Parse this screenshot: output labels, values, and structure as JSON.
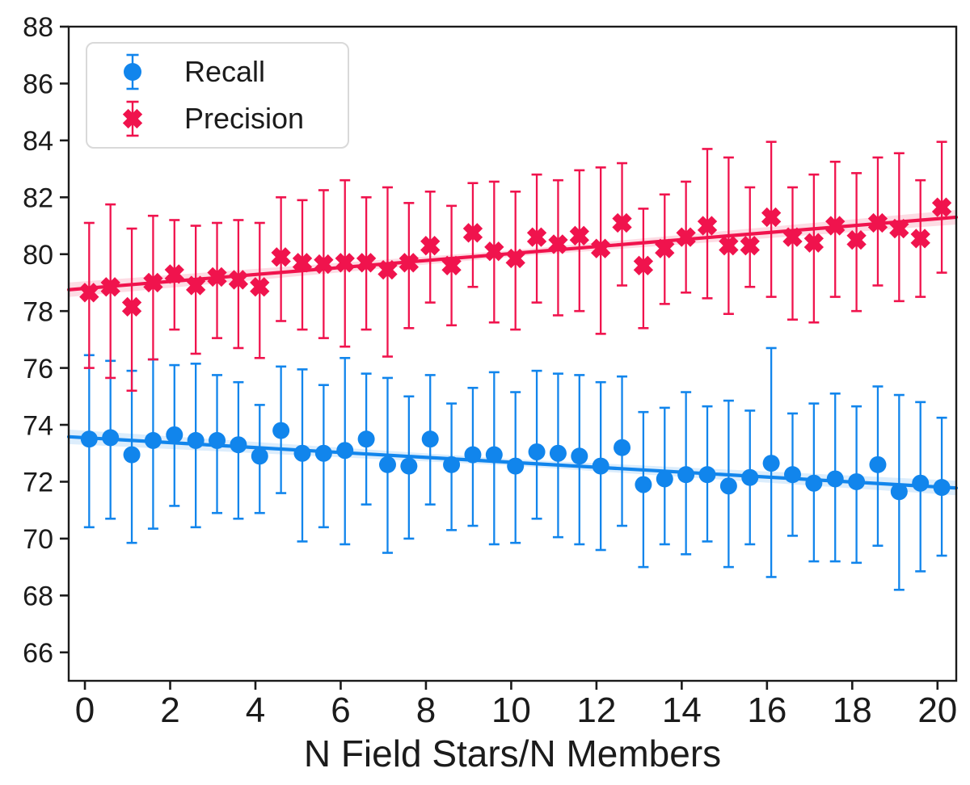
{
  "chart_data": {
    "type": "scatter",
    "title": "",
    "xlabel": "N Field Stars/N Members",
    "ylabel": "",
    "xlim": [
      -0.38,
      20.44
    ],
    "ylim": [
      65,
      88
    ],
    "x_ticks": [
      0,
      2,
      4,
      6,
      8,
      10,
      12,
      14,
      16,
      18,
      20
    ],
    "y_ticks": [
      66,
      68,
      70,
      72,
      74,
      76,
      78,
      80,
      82,
      84,
      86,
      88
    ],
    "grid": false,
    "legend_position": "upper left",
    "spine_color": "#1b1b1b",
    "points_format": [
      "x",
      "y",
      "err_lo",
      "err_hi"
    ],
    "series": [
      {
        "name": "Recall",
        "marker": "circle",
        "color": "#1185EC",
        "trend": {
          "x0": -0.38,
          "y0": 73.58,
          "x1": 20.44,
          "y1": 71.78
        },
        "points": [
          [
            0.1,
            73.5,
            70.4,
            76.45
          ],
          [
            0.6,
            73.55,
            70.7,
            76.25
          ],
          [
            1.1,
            72.95,
            69.85,
            75.9
          ],
          [
            1.6,
            73.45,
            70.35,
            76.3
          ],
          [
            2.1,
            73.65,
            71.15,
            76.1
          ],
          [
            2.6,
            73.45,
            70.4,
            76.15
          ],
          [
            3.1,
            73.45,
            70.9,
            75.75
          ],
          [
            3.6,
            73.3,
            70.7,
            75.5
          ],
          [
            4.1,
            72.9,
            70.9,
            74.7
          ],
          [
            4.6,
            73.8,
            71.6,
            76.05
          ],
          [
            5.1,
            73.0,
            69.9,
            75.95
          ],
          [
            5.6,
            73.0,
            70.4,
            75.4
          ],
          [
            6.1,
            73.1,
            69.8,
            76.35
          ],
          [
            6.6,
            73.5,
            71.2,
            75.8
          ],
          [
            7.1,
            72.6,
            69.5,
            75.65
          ],
          [
            7.6,
            72.55,
            70.0,
            75.0
          ],
          [
            8.1,
            73.5,
            71.2,
            75.75
          ],
          [
            8.6,
            72.6,
            70.3,
            74.75
          ],
          [
            9.1,
            72.95,
            70.45,
            75.3
          ],
          [
            9.6,
            72.95,
            69.8,
            75.85
          ],
          [
            10.1,
            72.55,
            69.85,
            75.15
          ],
          [
            10.6,
            73.05,
            70.7,
            75.9
          ],
          [
            11.1,
            73.0,
            70.05,
            75.8
          ],
          [
            11.6,
            72.9,
            69.8,
            75.75
          ],
          [
            12.1,
            72.55,
            69.6,
            75.5
          ],
          [
            12.6,
            73.2,
            70.45,
            75.7
          ],
          [
            13.1,
            71.9,
            69.0,
            74.45
          ],
          [
            13.6,
            72.1,
            69.8,
            74.6
          ],
          [
            14.1,
            72.25,
            69.45,
            75.15
          ],
          [
            14.6,
            72.25,
            69.9,
            74.65
          ],
          [
            15.1,
            71.85,
            69.0,
            74.85
          ],
          [
            15.6,
            72.15,
            69.8,
            74.5
          ],
          [
            16.1,
            72.65,
            68.65,
            76.7
          ],
          [
            16.6,
            72.25,
            70.1,
            74.4
          ],
          [
            17.1,
            71.95,
            69.2,
            74.75
          ],
          [
            17.6,
            72.1,
            69.2,
            75.1
          ],
          [
            18.1,
            72.0,
            69.15,
            74.65
          ],
          [
            18.6,
            72.6,
            69.75,
            75.35
          ],
          [
            19.1,
            71.65,
            68.2,
            75.05
          ],
          [
            19.6,
            71.95,
            68.85,
            74.8
          ],
          [
            20.1,
            71.8,
            69.4,
            74.25
          ]
        ]
      },
      {
        "name": "Precision",
        "marker": "x-filled",
        "color": "#F0134D",
        "trend": {
          "x0": -0.38,
          "y0": 78.75,
          "x1": 20.44,
          "y1": 81.3
        },
        "points": [
          [
            0.1,
            78.65,
            76.0,
            81.1
          ],
          [
            0.6,
            78.85,
            75.65,
            81.75
          ],
          [
            1.1,
            78.15,
            75.2,
            80.9
          ],
          [
            1.6,
            79.0,
            76.3,
            81.35
          ],
          [
            2.1,
            79.3,
            77.35,
            81.2
          ],
          [
            2.6,
            78.9,
            76.5,
            81.0
          ],
          [
            3.1,
            79.2,
            77.05,
            81.1
          ],
          [
            3.6,
            79.1,
            76.7,
            81.2
          ],
          [
            4.1,
            78.85,
            76.35,
            81.1
          ],
          [
            4.6,
            79.9,
            77.65,
            82.0
          ],
          [
            5.1,
            79.7,
            77.35,
            81.9
          ],
          [
            5.6,
            79.65,
            77.05,
            82.25
          ],
          [
            6.1,
            79.7,
            76.75,
            82.6
          ],
          [
            6.6,
            79.7,
            77.35,
            82.0
          ],
          [
            7.1,
            79.45,
            76.4,
            82.35
          ],
          [
            7.6,
            79.7,
            77.4,
            81.8
          ],
          [
            8.1,
            80.3,
            78.3,
            82.2
          ],
          [
            8.6,
            79.6,
            77.5,
            81.7
          ],
          [
            9.1,
            80.75,
            78.85,
            82.5
          ],
          [
            9.6,
            80.1,
            77.6,
            82.55
          ],
          [
            10.1,
            79.85,
            77.35,
            82.2
          ],
          [
            10.6,
            80.6,
            78.3,
            82.8
          ],
          [
            11.1,
            80.35,
            77.85,
            82.6
          ],
          [
            11.6,
            80.65,
            78.0,
            82.95
          ],
          [
            12.1,
            80.2,
            77.2,
            83.05
          ],
          [
            12.6,
            81.1,
            78.9,
            83.2
          ],
          [
            13.1,
            79.6,
            77.4,
            81.6
          ],
          [
            13.6,
            80.2,
            78.25,
            82.1
          ],
          [
            14.1,
            80.6,
            78.65,
            82.55
          ],
          [
            14.6,
            81.0,
            78.45,
            83.7
          ],
          [
            15.1,
            80.3,
            77.9,
            83.4
          ],
          [
            15.6,
            80.3,
            78.85,
            82.35
          ],
          [
            16.1,
            81.3,
            78.5,
            83.95
          ],
          [
            16.6,
            80.6,
            77.7,
            82.35
          ],
          [
            17.1,
            80.4,
            77.6,
            82.8
          ],
          [
            17.6,
            81.0,
            78.5,
            83.25
          ],
          [
            18.1,
            80.5,
            78.0,
            82.85
          ],
          [
            18.6,
            81.1,
            78.9,
            83.4
          ],
          [
            19.1,
            80.9,
            78.35,
            83.55
          ],
          [
            19.6,
            80.55,
            78.5,
            82.6
          ],
          [
            20.1,
            81.65,
            79.35,
            83.95
          ]
        ]
      }
    ]
  },
  "legend": {
    "items": [
      {
        "label": "Recall"
      },
      {
        "label": "Precision"
      }
    ]
  }
}
